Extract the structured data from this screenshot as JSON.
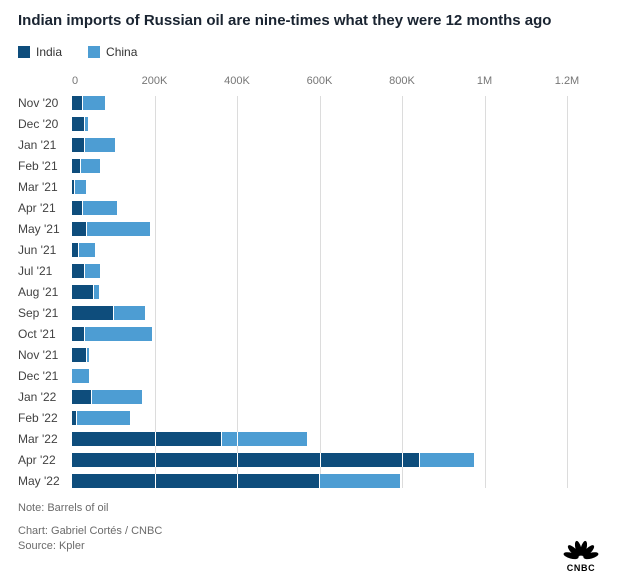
{
  "header": {
    "title": "Indian imports of Russian oil are nine-times what they were 12 months ago"
  },
  "chart_data": {
    "type": "bar",
    "orientation": "horizontal",
    "stacked": true,
    "title": "Indian imports of Russian oil are nine-times what they were 12 months ago",
    "categories": [
      "Nov '20",
      "Dec '20",
      "Jan '21",
      "Feb '21",
      "Mar '21",
      "Apr '21",
      "May '21",
      "Jun '21",
      "Jul '21",
      "Aug '21",
      "Sep '21",
      "Oct '21",
      "Nov '21",
      "Dec '21",
      "Jan '22",
      "Feb '22",
      "Mar '22",
      "Apr '22",
      "May '22"
    ],
    "series": [
      {
        "name": "India",
        "color": "#0e4d7c",
        "values": [
          25000,
          28000,
          30000,
          20000,
          5000,
          25000,
          35000,
          15000,
          30000,
          50000,
          100000,
          30000,
          35000,
          0,
          45000,
          10000,
          360000,
          840000,
          600000
        ]
      },
      {
        "name": "China",
        "color": "#4d9dd3",
        "values": [
          55000,
          10000,
          75000,
          48000,
          30000,
          85000,
          155000,
          40000,
          38000,
          15000,
          77000,
          165000,
          5000,
          40000,
          125000,
          130000,
          210000,
          135000,
          195000
        ]
      }
    ],
    "xlabel": "",
    "ylabel": "",
    "xlim": [
      0,
      1200000
    ],
    "grid": "vertical",
    "legend_position": "top",
    "xticks": [
      {
        "value": 0,
        "label": "0"
      },
      {
        "value": 200000,
        "label": "200K"
      },
      {
        "value": 400000,
        "label": "400K"
      },
      {
        "value": 600000,
        "label": "600K"
      },
      {
        "value": 800000,
        "label": "800K"
      },
      {
        "value": 1000000,
        "label": "1M"
      },
      {
        "value": 1200000,
        "label": "1.2M"
      }
    ]
  },
  "footer": {
    "note": "Note: Barrels of oil",
    "credit": "Chart: Gabriel Cortés / CNBC",
    "source": "Source: Kpler",
    "logo_text": "CNBC"
  }
}
